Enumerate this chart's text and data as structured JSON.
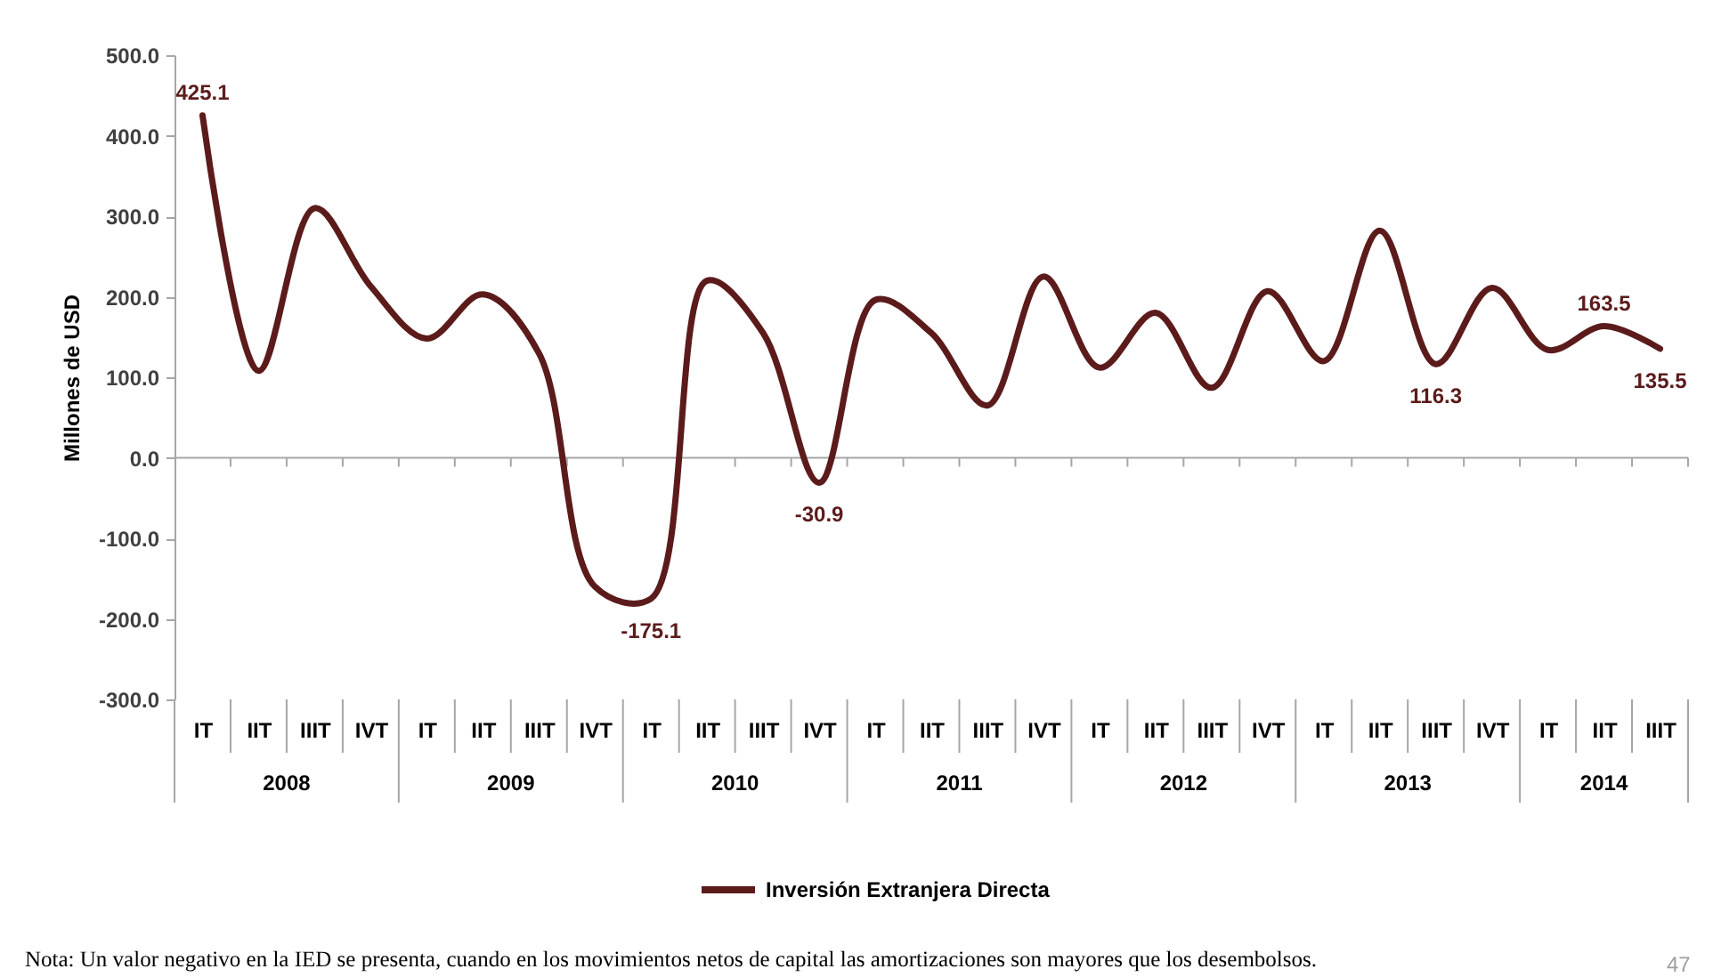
{
  "chart_data": {
    "type": "line",
    "ylabel": "Millones de USD",
    "categories": [
      "IT",
      "IIT",
      "IIIT",
      "IVT",
      "IT",
      "IIT",
      "IIIT",
      "IVT",
      "IT",
      "IIT",
      "IIIT",
      "IVT",
      "IT",
      "IIT",
      "IIIT",
      "IVT",
      "IT",
      "IIT",
      "IIIT",
      "IVT",
      "IT",
      "IIT",
      "IIIT",
      "IVT",
      "IT",
      "IIT",
      "IIIT"
    ],
    "series": [
      {
        "name": "Inversión Extranjera Directa",
        "color": "#5c1b1b",
        "values": [
          425.1,
          108,
          310,
          213,
          148,
          203,
          130,
          -160,
          -175.1,
          220,
          155,
          -30.9,
          196,
          155,
          65,
          225,
          112,
          180,
          87,
          207,
          120,
          282,
          116.3,
          211,
          134,
          163.5,
          135.5
        ],
        "value_labels": [
          "425.1",
          null,
          null,
          null,
          null,
          null,
          null,
          null,
          "-175.1",
          null,
          null,
          "-30.9",
          null,
          null,
          null,
          null,
          null,
          null,
          null,
          null,
          null,
          null,
          "116.3",
          null,
          null,
          "163.5",
          "135.5"
        ]
      }
    ],
    "ylim": [
      -300,
      500
    ],
    "yticks": [
      {
        "value": 500,
        "label": "500.0"
      },
      {
        "value": 400,
        "label": "400.0"
      },
      {
        "value": 300,
        "label": "300.0"
      },
      {
        "value": 200,
        "label": "200.0"
      },
      {
        "value": 100,
        "label": "100.0"
      },
      {
        "value": 0,
        "label": "0.0"
      },
      {
        "value": -100,
        "label": "-100.0"
      },
      {
        "value": -200,
        "label": "-200.0"
      },
      {
        "value": -300,
        "label": "-300.0"
      }
    ],
    "legend": "bottom",
    "annotations": [
      "2008",
      "2009",
      "2010",
      "2011",
      "2012",
      "2013",
      "2014",
      "Nota: Un valor negativo en la IED se presenta, cuando en los movimientos netos de capital las amortizaciones son mayores que los desembolsos.",
      "47"
    ]
  }
}
